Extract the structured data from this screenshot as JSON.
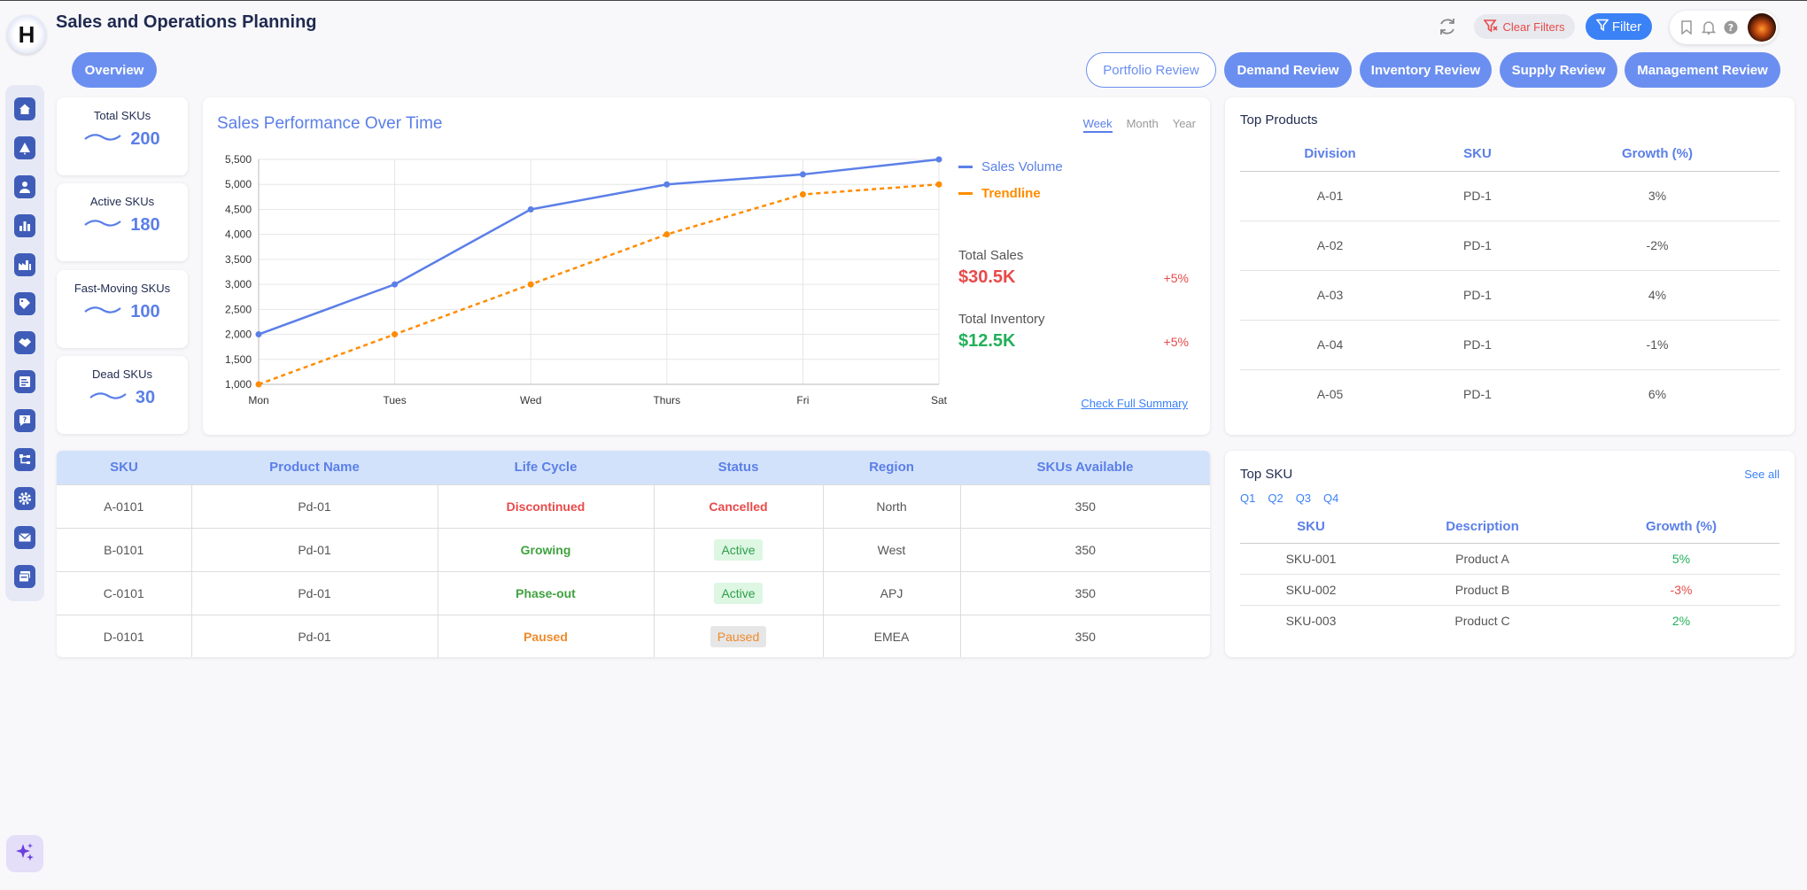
{
  "header": {
    "logo_letter": "H",
    "title": "Sales and Operations Planning",
    "clear_filters": "Clear Filters",
    "filter": "Filter"
  },
  "nav": {
    "overview": "Overview",
    "portfolio_review": "Portfolio Review",
    "demand_review": "Demand Review",
    "inventory_review": "Inventory Review",
    "supply_review": "Supply Review",
    "management_review": "Management Review"
  },
  "sidebar": {
    "icons": [
      "home-icon",
      "alert-icon",
      "user-icon",
      "bar-chart-icon",
      "factory-icon",
      "tag-icon",
      "handshake-icon",
      "report-icon",
      "message-icon",
      "hierarchy-icon",
      "settings-icon",
      "mail-icon",
      "stack-icon"
    ]
  },
  "kpis": [
    {
      "label": "Total SKUs",
      "value": "200"
    },
    {
      "label": "Active SKUs",
      "value": "180"
    },
    {
      "label": "Fast-Moving SKUs",
      "value": "100"
    },
    {
      "label": "Dead SKUs",
      "value": "30"
    }
  ],
  "chart": {
    "title": "Sales Performance Over Time",
    "tabs": {
      "week": "Week",
      "month": "Month",
      "year": "Year"
    },
    "total_sales_label": "Total Sales",
    "total_sales_value": "$30.5K",
    "total_sales_delta": "+5%",
    "total_inventory_label": "Total Inventory",
    "total_inventory_value": "$12.5K",
    "total_inventory_delta": "+5%",
    "full_summary": "Check Full Summary",
    "colors": {
      "sales": "#5b7fe8",
      "trend": "#ff8c00",
      "green": "#22b05a",
      "red": "#e84a4a"
    }
  },
  "chart_data": {
    "type": "line",
    "categories": [
      "Mon",
      "Tues",
      "Wed",
      "Thurs",
      "Fri",
      "Sat"
    ],
    "series": [
      {
        "name": "Sales Volume",
        "values": [
          2000,
          3000,
          4500,
          5000,
          5200,
          5500
        ]
      },
      {
        "name": "Trendline",
        "values": [
          1000,
          2000,
          3000,
          4000,
          4800,
          5000
        ]
      }
    ],
    "yticks": [
      "1,000",
      "1,500",
      "2,000",
      "2,500",
      "3,000",
      "3,500",
      "4,000",
      "4,500",
      "5,000",
      "5,500"
    ],
    "ylim": [
      1000,
      5500
    ],
    "grid": true,
    "legend": "right"
  },
  "top_products": {
    "title": "Top Products",
    "headers": [
      "Division",
      "SKU",
      "Growth (%)"
    ],
    "rows": [
      [
        "A-01",
        "PD-1",
        "3%"
      ],
      [
        "A-02",
        "PD-1",
        "-2%"
      ],
      [
        "A-03",
        "PD-1",
        "4%"
      ],
      [
        "A-04",
        "PD-1",
        "-1%"
      ],
      [
        "A-05",
        "PD-1",
        "6%"
      ]
    ]
  },
  "main_table": {
    "headers": [
      "SKU",
      "Product Name",
      "Life Cycle",
      "Status",
      "Region",
      "SKUs Available"
    ],
    "rows": [
      {
        "sku": "A-0101",
        "product": "Pd-01",
        "life_cycle": "Discontinued",
        "status": "Cancelled",
        "region": "North",
        "available": "350"
      },
      {
        "sku": "B-0101",
        "product": "Pd-01",
        "life_cycle": "Growing",
        "status": "Active",
        "region": "West",
        "available": "350"
      },
      {
        "sku": "C-0101",
        "product": "Pd-01",
        "life_cycle": "Phase-out",
        "status": "Active",
        "region": "APJ",
        "available": "350"
      },
      {
        "sku": "D-0101",
        "product": "Pd-01",
        "life_cycle": "Paused",
        "status": "Paused",
        "region": "EMEA",
        "available": "350"
      }
    ]
  },
  "top_sku": {
    "title": "Top SKU",
    "see_all": "See all",
    "quarters": [
      "Q1",
      "Q2",
      "Q3",
      "Q4"
    ],
    "headers": [
      "SKU",
      "Description",
      "Growth (%)"
    ],
    "rows": [
      {
        "sku": "SKU-001",
        "desc": "Product A",
        "growth": "5%"
      },
      {
        "sku": "SKU-002",
        "desc": "Product B",
        "growth": "-3%"
      },
      {
        "sku": "SKU-003",
        "desc": "Product C",
        "growth": "2%"
      }
    ]
  }
}
